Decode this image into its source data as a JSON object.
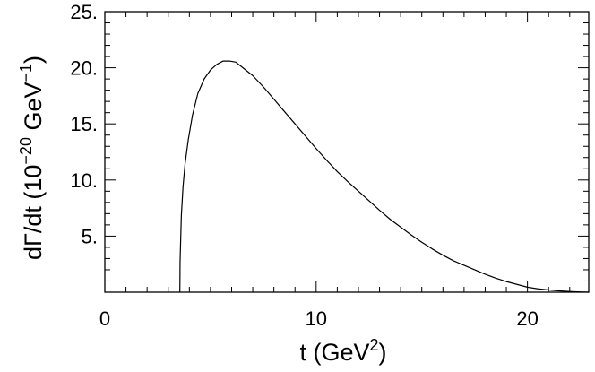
{
  "chart_data": {
    "type": "line",
    "title": "",
    "xlabel": {
      "base": "t (GeV",
      "sup": "2",
      "tail": ")"
    },
    "ylabel": {
      "base": "dΓ/dt (10",
      "sup1": "−20",
      "mid": " GeV",
      "sup2": "−1",
      "tail": ")"
    },
    "xlim": [
      0,
      22.9
    ],
    "ylim": [
      0,
      25
    ],
    "grid": false,
    "legend": "none",
    "x_ticks": [
      {
        "value": 0,
        "label": "0"
      },
      {
        "value": 10,
        "label": "10"
      },
      {
        "value": 20,
        "label": "20"
      }
    ],
    "y_ticks": [
      {
        "value": 5,
        "label": "5."
      },
      {
        "value": 10,
        "label": "10."
      },
      {
        "value": 15,
        "label": "15."
      },
      {
        "value": 20,
        "label": "20."
      },
      {
        "value": 25,
        "label": "25."
      }
    ],
    "line_color": "#000000",
    "series": [
      {
        "x": [
          3.55,
          3.56,
          3.62,
          3.7,
          3.8,
          3.95,
          4.15,
          4.4,
          4.7,
          5.0,
          5.3,
          5.6,
          5.9,
          6.2,
          6.6,
          7.0,
          7.5,
          8.0,
          8.5,
          9.0,
          9.5,
          10.0,
          10.5,
          11.0,
          11.5,
          12.0,
          12.5,
          13.0,
          13.5,
          14.0,
          14.5,
          15.0,
          15.5,
          16.0,
          16.5,
          17.0,
          17.5,
          18.0,
          18.5,
          19.0,
          19.5,
          20.0,
          20.5,
          21.0,
          21.5,
          22.0,
          22.5,
          22.9
        ],
        "y": [
          0.0,
          2.7,
          6.8,
          9.4,
          11.5,
          13.6,
          15.8,
          17.7,
          19.0,
          19.8,
          20.3,
          20.6,
          20.6,
          20.5,
          19.9,
          19.3,
          18.3,
          17.2,
          16.1,
          15.0,
          13.9,
          12.8,
          11.75,
          10.75,
          9.85,
          9.0,
          8.15,
          7.3,
          6.5,
          5.8,
          5.1,
          4.45,
          3.85,
          3.3,
          2.8,
          2.4,
          2.0,
          1.6,
          1.25,
          0.95,
          0.7,
          0.45,
          0.3,
          0.2,
          0.12,
          0.06,
          0.02,
          0.0
        ]
      }
    ]
  }
}
